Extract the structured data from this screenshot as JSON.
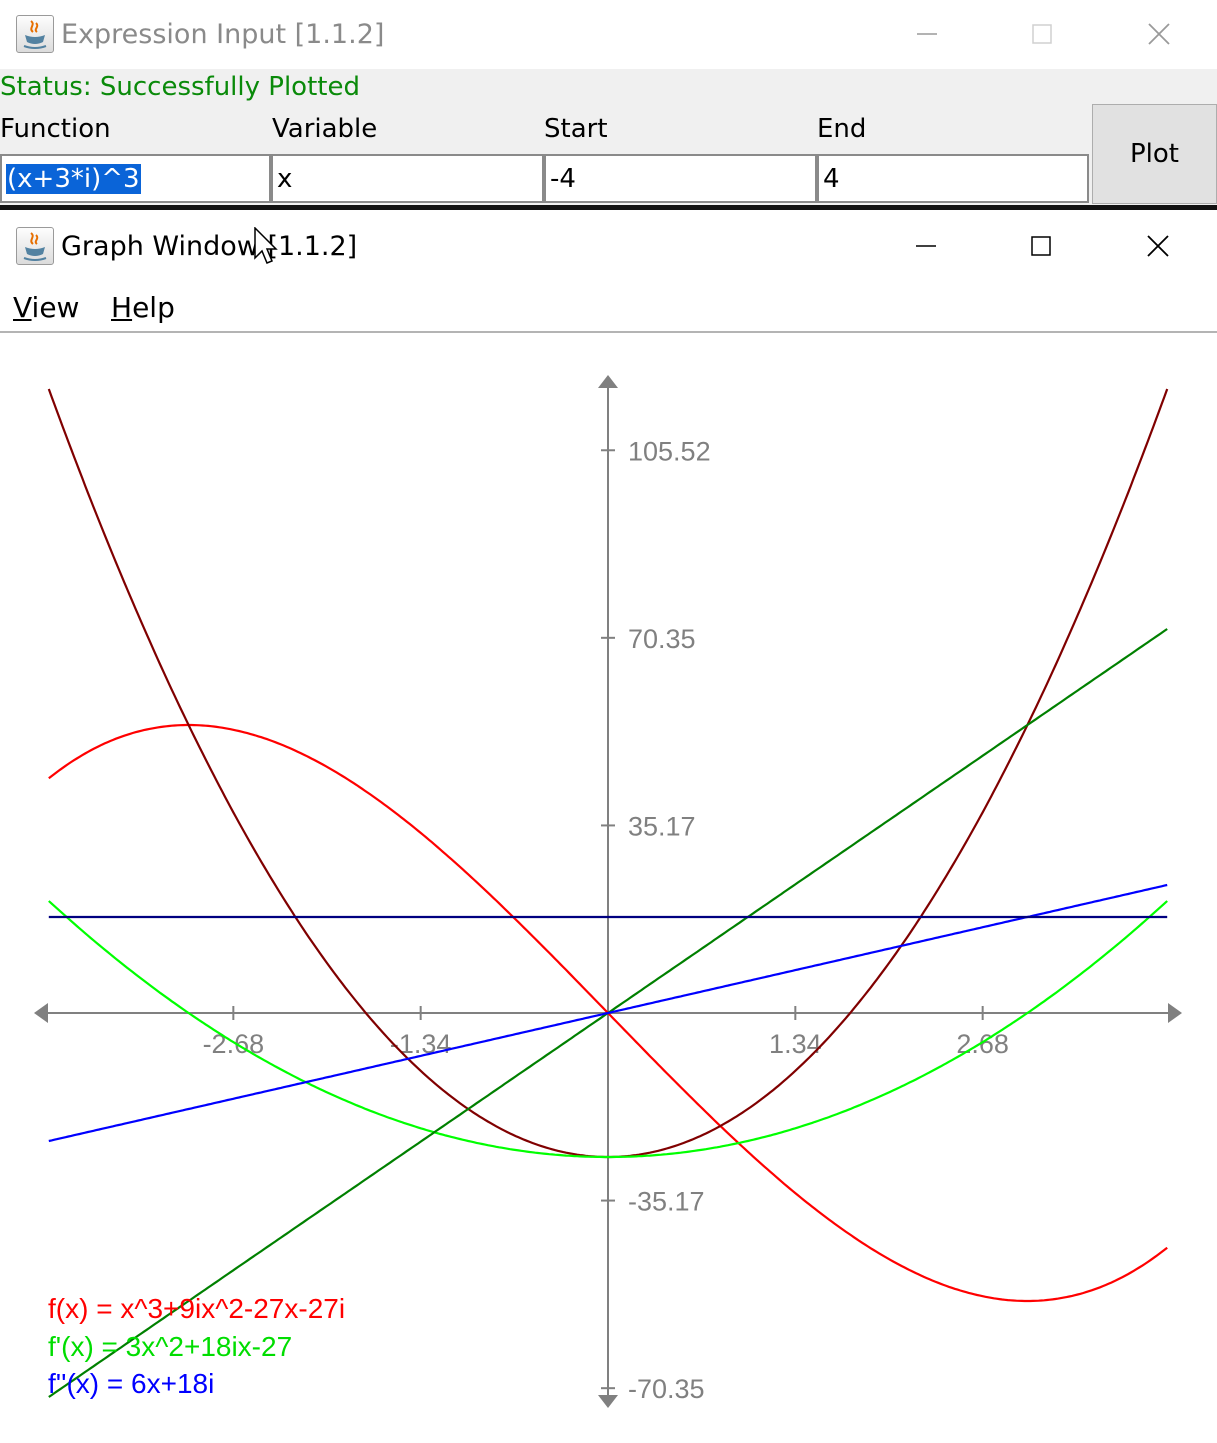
{
  "expression_window": {
    "title": "Expression Input [1.1.2]",
    "status": "Status: Successfully Plotted",
    "columns": {
      "function": "Function",
      "variable": "Variable",
      "start": "Start",
      "end": "End"
    },
    "fields": {
      "function_value": "(x+3*i)^3",
      "variable_value": "x",
      "start_value": "-4",
      "end_value": "4"
    },
    "plot_button": "Plot"
  },
  "graph_window": {
    "title": "Graph Window [1.1.2]",
    "menu": [
      {
        "mnemonic": "V",
        "rest": "iew"
      },
      {
        "mnemonic": "H",
        "rest": "elp"
      }
    ]
  },
  "colors": {
    "status_green": "#0a8a0a",
    "axis_gray": "#808080",
    "f_real": "#ff0000",
    "f_imag": "#800000",
    "f1_real": "#00ff00",
    "f1_imag": "#008000",
    "f2_real": "#0000ff",
    "f2_imag": "#000080"
  },
  "legend": [
    {
      "text": "f(x) = x^3+9ix^2-27x-27i",
      "color": "#ff0000"
    },
    {
      "text": "f'(x) = 3x^2+18ix-27",
      "color": "#00dd00"
    },
    {
      "text": "f''(x) = 6x+18i",
      "color": "#0000ff"
    }
  ],
  "chart_data": {
    "type": "line",
    "title": "",
    "xlabel": "",
    "ylabel": "",
    "xlim": [
      -4,
      4
    ],
    "ylim": [
      -70.35,
      105.52
    ],
    "x_ticks": [
      "-2.68",
      "-1.34",
      "1.34",
      "2.68"
    ],
    "y_ticks": [
      "105.52",
      "70.35",
      "35.17",
      "-35.17",
      "-70.35"
    ],
    "grid": false,
    "legend_position": "bottom-left",
    "series": [
      {
        "color": "#ff0000",
        "expr": "Re f = x^3 - 27x",
        "x": [
          -4,
          -3,
          -2,
          -1,
          0,
          1,
          2,
          3,
          4
        ],
        "y": [
          44,
          54,
          46,
          26,
          0,
          -26,
          -46,
          -54,
          -44
        ]
      },
      {
        "color": "#800000",
        "expr": "Im f = 9x^2 - 27",
        "x": [
          -4,
          -3,
          -2,
          -1,
          0,
          1,
          2,
          3,
          4
        ],
        "y": [
          117,
          54,
          9,
          -18,
          -27,
          -18,
          9,
          54,
          117
        ]
      },
      {
        "color": "#00ff00",
        "expr": "Re f' = 3x^2 - 27",
        "x": [
          -4,
          -3,
          -2,
          -1,
          0,
          1,
          2,
          3,
          4
        ],
        "y": [
          21,
          0,
          -15,
          -24,
          -27,
          -24,
          -15,
          0,
          21
        ]
      },
      {
        "color": "#008000",
        "expr": "Im f' = 18x",
        "x": [
          -4,
          4
        ],
        "y": [
          -72,
          72
        ]
      },
      {
        "color": "#0000ff",
        "expr": "Re f'' = 6x",
        "x": [
          -4,
          4
        ],
        "y": [
          -24,
          24
        ]
      },
      {
        "color": "#000080",
        "expr": "Im f'' = 18",
        "x": [
          -4,
          4
        ],
        "y": [
          18,
          18
        ]
      }
    ]
  }
}
